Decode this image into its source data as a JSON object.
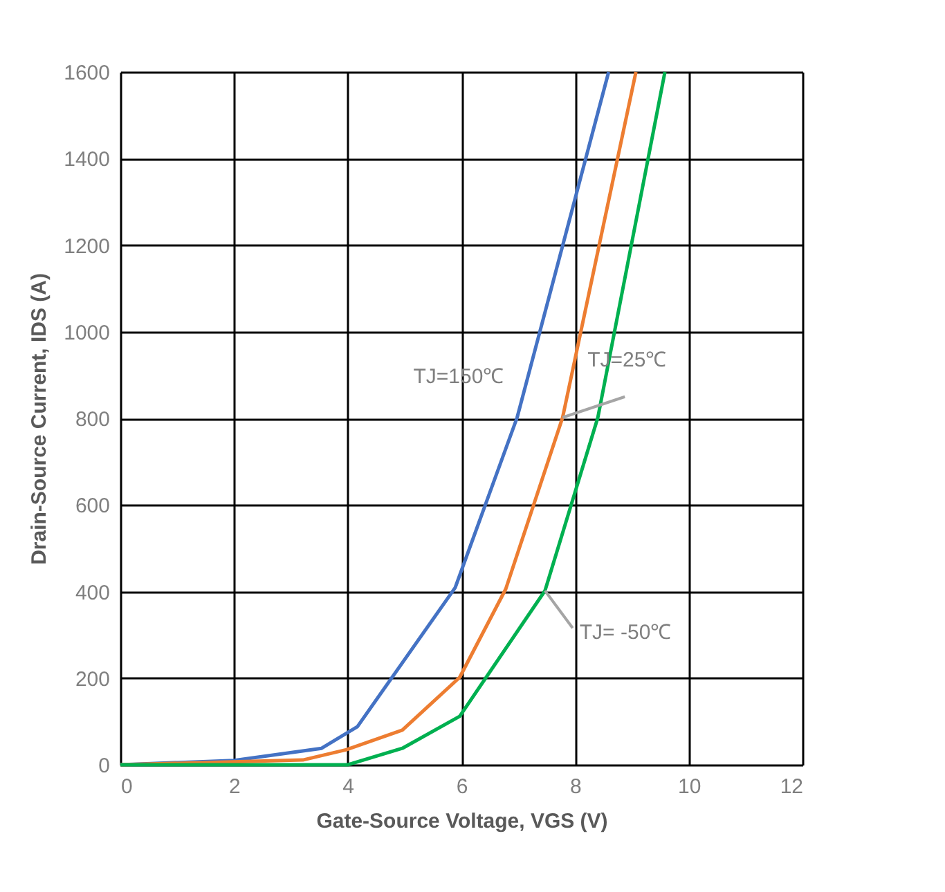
{
  "chart_data": {
    "type": "line",
    "xlabel": "Gate-Source Voltage, VGS (V)",
    "ylabel": "Drain-Source Current, IDS (A)",
    "xlim": [
      0,
      12
    ],
    "xticks": [
      0,
      2,
      4,
      6,
      8,
      10,
      12
    ],
    "ylim": [
      0,
      1600
    ],
    "yticks": [
      0,
      200,
      400,
      600,
      800,
      1000,
      1200,
      1400,
      1600
    ],
    "grid": true,
    "marker": "none",
    "line_style": "solid",
    "series": [
      {
        "color": "#4472c4",
        "x": [
          0,
          2,
          3.54,
          4.17,
          5.89,
          6.98,
          8.59
        ],
        "values": [
          0,
          10,
          38,
          88,
          409,
          802,
          1600
        ]
      },
      {
        "color": "#ed7d31",
        "x": [
          0,
          3.21,
          3.98,
          4.96,
          5.97,
          6.78,
          7.78,
          9.07
        ],
        "values": [
          0,
          11,
          35,
          80,
          202,
          406,
          802,
          1600
        ]
      },
      {
        "color": "#00b050",
        "x": [
          0,
          4.0,
          4.96,
          5.97,
          7.47,
          8.4,
          9.58
        ],
        "values": [
          0,
          0,
          38,
          112,
          402,
          802,
          1600
        ]
      }
    ],
    "annotations": [
      {
        "text": "TJ=150℃",
        "x": 6.98,
        "y": 802
      },
      {
        "text": "TJ=25℃",
        "x": 7.78,
        "y": 802
      },
      {
        "text": "TJ= -50℃",
        "x": 7.47,
        "y": 402
      }
    ]
  }
}
